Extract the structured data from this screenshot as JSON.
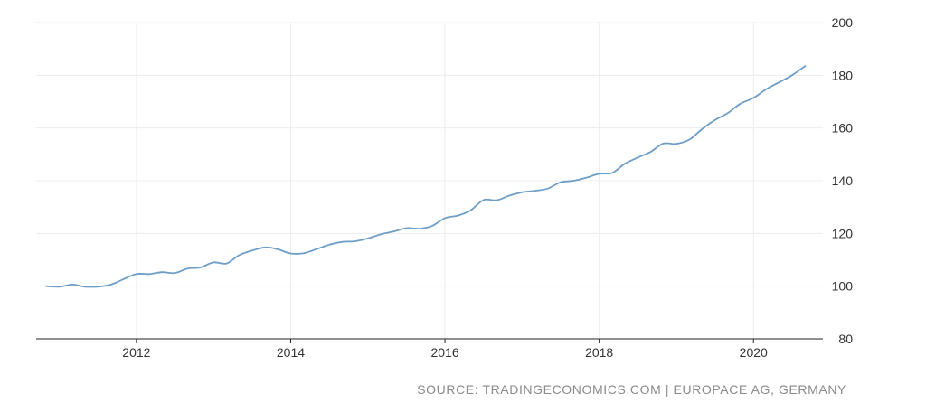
{
  "chart_data": {
    "type": "line",
    "title": "",
    "xlabel": "",
    "ylabel": "",
    "xlim": [
      2010.7,
      2020.9
    ],
    "ylim": [
      80,
      200
    ],
    "x_ticks": [
      2012,
      2014,
      2016,
      2018,
      2020
    ],
    "x_tick_labels": [
      "2012",
      "2014",
      "2016",
      "2018",
      "2020"
    ],
    "y_ticks": [
      80,
      100,
      120,
      140,
      160,
      180,
      200
    ],
    "y_tick_labels": [
      "80",
      "100",
      "120",
      "140",
      "160",
      "180",
      "200"
    ],
    "grid": true,
    "line_color": "#6e9ec7",
    "series": [
      {
        "values": [
          [
            2010.83,
            100.0
          ],
          [
            2011.0,
            99.8
          ],
          [
            2011.17,
            100.6
          ],
          [
            2011.33,
            99.8
          ],
          [
            2011.5,
            99.8
          ],
          [
            2011.67,
            100.6
          ],
          [
            2011.83,
            102.6
          ],
          [
            2012.0,
            104.6
          ],
          [
            2012.17,
            104.6
          ],
          [
            2012.33,
            105.3
          ],
          [
            2012.5,
            105.0
          ],
          [
            2012.67,
            106.7
          ],
          [
            2012.83,
            107.1
          ],
          [
            2013.0,
            109.0
          ],
          [
            2013.17,
            108.6
          ],
          [
            2013.33,
            111.7
          ],
          [
            2013.5,
            113.5
          ],
          [
            2013.67,
            114.7
          ],
          [
            2013.83,
            114.0
          ],
          [
            2014.0,
            112.4
          ],
          [
            2014.17,
            112.5
          ],
          [
            2014.33,
            114.0
          ],
          [
            2014.5,
            115.7
          ],
          [
            2014.67,
            116.8
          ],
          [
            2014.83,
            117.0
          ],
          [
            2015.0,
            118.1
          ],
          [
            2015.17,
            119.7
          ],
          [
            2015.33,
            120.7
          ],
          [
            2015.5,
            122.0
          ],
          [
            2015.67,
            121.8
          ],
          [
            2015.83,
            122.8
          ],
          [
            2016.0,
            125.8
          ],
          [
            2016.17,
            126.8
          ],
          [
            2016.33,
            128.7
          ],
          [
            2016.5,
            132.7
          ],
          [
            2016.67,
            132.6
          ],
          [
            2016.83,
            134.3
          ],
          [
            2017.0,
            135.6
          ],
          [
            2017.17,
            136.2
          ],
          [
            2017.33,
            137.0
          ],
          [
            2017.5,
            139.4
          ],
          [
            2017.67,
            140.0
          ],
          [
            2017.83,
            141.1
          ],
          [
            2018.0,
            142.6
          ],
          [
            2018.17,
            143.0
          ],
          [
            2018.33,
            146.4
          ],
          [
            2018.5,
            148.8
          ],
          [
            2018.67,
            151.0
          ],
          [
            2018.83,
            154.1
          ],
          [
            2019.0,
            154.0
          ],
          [
            2019.17,
            155.6
          ],
          [
            2019.33,
            159.5
          ],
          [
            2019.5,
            163.0
          ],
          [
            2019.67,
            165.7
          ],
          [
            2019.83,
            169.2
          ],
          [
            2020.0,
            171.4
          ],
          [
            2020.17,
            174.8
          ],
          [
            2020.33,
            177.3
          ],
          [
            2020.5,
            180.0
          ],
          [
            2020.67,
            183.5
          ]
        ]
      }
    ]
  },
  "source_text": "SOURCE: TRADINGECONOMICS.COM | EUROPACE AG, GERMANY"
}
